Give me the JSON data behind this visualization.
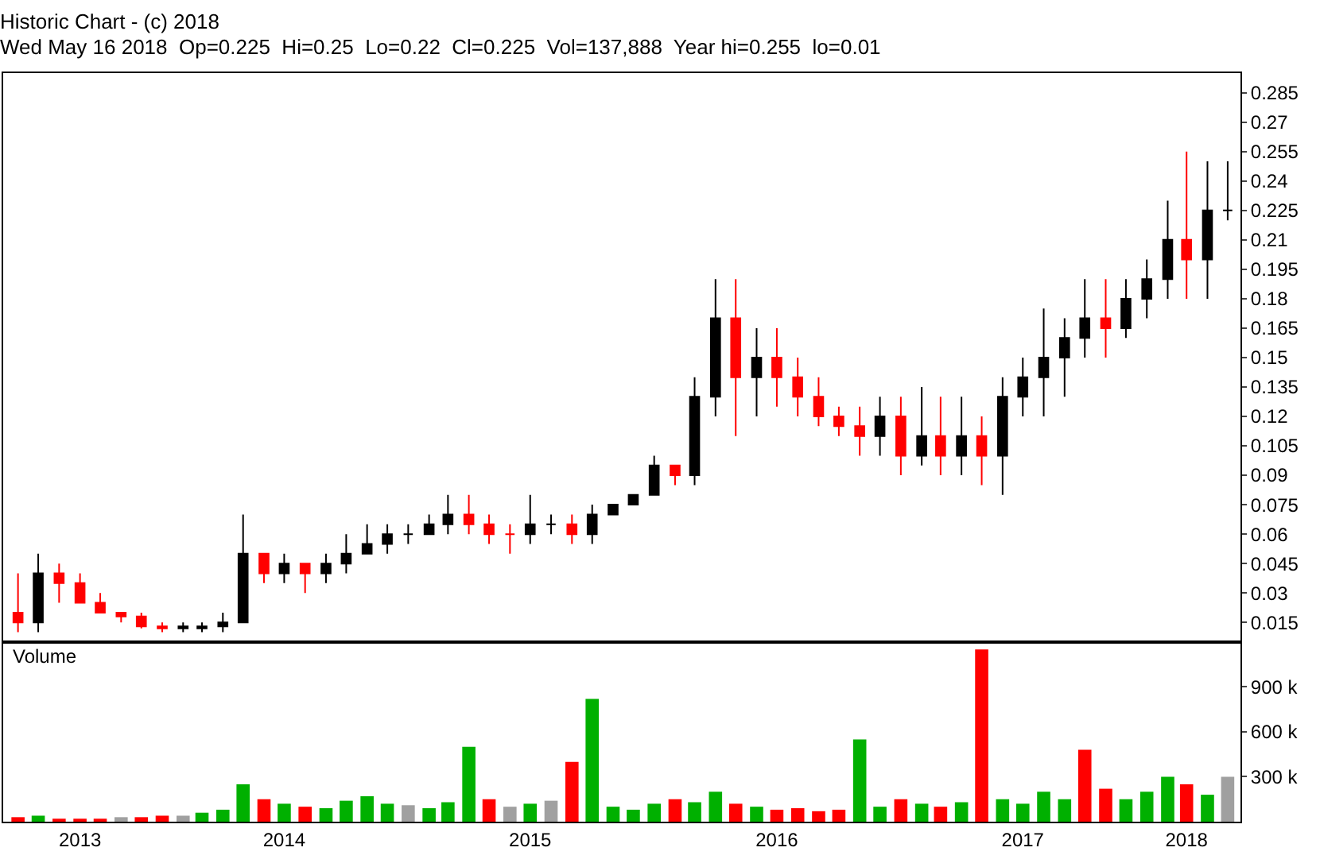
{
  "chart_data": [
    {
      "type": "candlestick",
      "title": "Historic Chart - (c) 2018",
      "subtitle": "Wed May 16 2018  Op=0.225  Hi=0.25  Lo=0.22  Cl=0.225  Vol=137,888  Year hi=0.255  lo=0.01",
      "x": [
        "2013-06-01",
        "2013-07-01",
        "2013-08-01",
        "2013-09-01",
        "2013-10-01",
        "2013-11-01",
        "2013-12-01",
        "2014-01-01",
        "2014-02-01",
        "2014-03-01",
        "2014-04-01",
        "2014-05-01",
        "2014-06-01",
        "2014-07-01",
        "2014-08-01",
        "2014-09-01",
        "2014-10-01",
        "2014-11-01",
        "2014-12-01",
        "2015-01-01",
        "2015-02-01",
        "2015-03-01",
        "2015-04-01",
        "2015-05-01",
        "2015-06-01",
        "2015-07-01",
        "2015-08-01",
        "2015-09-01",
        "2015-10-01",
        "2015-11-01",
        "2015-12-01",
        "2016-01-01",
        "2016-02-01",
        "2016-03-01",
        "2016-04-01",
        "2016-05-01",
        "2016-06-01",
        "2016-07-01",
        "2016-08-01",
        "2016-09-01",
        "2016-10-01",
        "2016-11-01",
        "2016-12-01",
        "2017-01-01",
        "2017-02-01",
        "2017-03-01",
        "2017-04-01",
        "2017-05-01",
        "2017-06-01",
        "2017-07-01",
        "2017-08-01",
        "2017-09-01",
        "2017-10-01",
        "2017-11-01",
        "2017-12-01",
        "2018-01-01",
        "2018-02-01",
        "2018-03-01",
        "2018-04-01",
        "2018-05-01"
      ],
      "ohlc": [
        [
          0.02,
          0.04,
          0.01,
          0.015
        ],
        [
          0.015,
          0.05,
          0.01,
          0.04
        ],
        [
          0.04,
          0.045,
          0.025,
          0.035
        ],
        [
          0.035,
          0.04,
          0.025,
          0.025
        ],
        [
          0.025,
          0.03,
          0.02,
          0.02
        ],
        [
          0.02,
          0.02,
          0.015,
          0.018
        ],
        [
          0.018,
          0.02,
          0.012,
          0.013
        ],
        [
          0.013,
          0.015,
          0.01,
          0.012
        ],
        [
          0.012,
          0.015,
          0.01,
          0.013
        ],
        [
          0.012,
          0.015,
          0.01,
          0.013
        ],
        [
          0.013,
          0.02,
          0.01,
          0.015
        ],
        [
          0.015,
          0.07,
          0.015,
          0.05
        ],
        [
          0.05,
          0.05,
          0.035,
          0.04
        ],
        [
          0.04,
          0.05,
          0.035,
          0.045
        ],
        [
          0.045,
          0.045,
          0.03,
          0.04
        ],
        [
          0.04,
          0.05,
          0.035,
          0.045
        ],
        [
          0.045,
          0.06,
          0.04,
          0.05
        ],
        [
          0.05,
          0.065,
          0.05,
          0.055
        ],
        [
          0.055,
          0.065,
          0.05,
          0.06
        ],
        [
          0.06,
          0.065,
          0.055,
          0.06
        ],
        [
          0.06,
          0.07,
          0.06,
          0.065
        ],
        [
          0.065,
          0.08,
          0.06,
          0.07
        ],
        [
          0.07,
          0.08,
          0.06,
          0.065
        ],
        [
          0.065,
          0.07,
          0.055,
          0.06
        ],
        [
          0.06,
          0.065,
          0.05,
          0.06
        ],
        [
          0.06,
          0.08,
          0.055,
          0.065
        ],
        [
          0.065,
          0.07,
          0.06,
          0.065
        ],
        [
          0.065,
          0.07,
          0.055,
          0.06
        ],
        [
          0.06,
          0.075,
          0.055,
          0.07
        ],
        [
          0.07,
          0.075,
          0.07,
          0.075
        ],
        [
          0.075,
          0.08,
          0.075,
          0.08
        ],
        [
          0.08,
          0.1,
          0.08,
          0.095
        ],
        [
          0.095,
          0.095,
          0.085,
          0.09
        ],
        [
          0.09,
          0.14,
          0.085,
          0.13
        ],
        [
          0.13,
          0.19,
          0.12,
          0.17
        ],
        [
          0.17,
          0.19,
          0.11,
          0.14
        ],
        [
          0.14,
          0.165,
          0.12,
          0.15
        ],
        [
          0.15,
          0.165,
          0.125,
          0.14
        ],
        [
          0.14,
          0.15,
          0.12,
          0.13
        ],
        [
          0.13,
          0.14,
          0.115,
          0.12
        ],
        [
          0.12,
          0.125,
          0.11,
          0.115
        ],
        [
          0.115,
          0.125,
          0.1,
          0.11
        ],
        [
          0.11,
          0.13,
          0.1,
          0.12
        ],
        [
          0.12,
          0.13,
          0.09,
          0.1
        ],
        [
          0.1,
          0.135,
          0.095,
          0.11
        ],
        [
          0.11,
          0.13,
          0.09,
          0.1
        ],
        [
          0.1,
          0.13,
          0.09,
          0.11
        ],
        [
          0.11,
          0.12,
          0.085,
          0.1
        ],
        [
          0.1,
          0.14,
          0.08,
          0.13
        ],
        [
          0.13,
          0.15,
          0.12,
          0.14
        ],
        [
          0.14,
          0.175,
          0.12,
          0.15
        ],
        [
          0.15,
          0.17,
          0.13,
          0.16
        ],
        [
          0.16,
          0.19,
          0.15,
          0.17
        ],
        [
          0.17,
          0.19,
          0.15,
          0.165
        ],
        [
          0.165,
          0.19,
          0.16,
          0.18
        ],
        [
          0.18,
          0.2,
          0.17,
          0.19
        ],
        [
          0.19,
          0.23,
          0.18,
          0.21
        ],
        [
          0.21,
          0.255,
          0.18,
          0.2
        ],
        [
          0.2,
          0.25,
          0.18,
          0.225
        ],
        [
          0.225,
          0.25,
          0.22,
          0.225
        ]
      ],
      "xlim": [
        "2013-05-10",
        "2018-05-20"
      ],
      "ylim": [
        0.005,
        0.295
      ],
      "yticks": [
        0.015,
        0.03,
        0.045,
        0.06,
        0.075,
        0.09,
        0.105,
        0.12,
        0.135,
        0.15,
        0.165,
        0.18,
        0.195,
        0.21,
        0.225,
        0.24,
        0.255,
        0.27,
        0.285
      ],
      "tick_labels": "y",
      "grid": false
    },
    {
      "type": "bar",
      "title": "Volume",
      "x": [
        "2013-06-01",
        "2013-07-01",
        "2013-08-01",
        "2013-09-01",
        "2013-10-01",
        "2013-11-01",
        "2013-12-01",
        "2014-01-01",
        "2014-02-01",
        "2014-03-01",
        "2014-04-01",
        "2014-05-01",
        "2014-06-01",
        "2014-07-01",
        "2014-08-01",
        "2014-09-01",
        "2014-10-01",
        "2014-11-01",
        "2014-12-01",
        "2015-01-01",
        "2015-02-01",
        "2015-03-01",
        "2015-04-01",
        "2015-05-01",
        "2015-06-01",
        "2015-07-01",
        "2015-08-01",
        "2015-09-01",
        "2015-10-01",
        "2015-11-01",
        "2015-12-01",
        "2016-01-01",
        "2016-02-01",
        "2016-03-01",
        "2016-04-01",
        "2016-05-01",
        "2016-06-01",
        "2016-07-01",
        "2016-08-01",
        "2016-09-01",
        "2016-10-01",
        "2016-11-01",
        "2016-12-01",
        "2017-01-01",
        "2017-02-01",
        "2017-03-01",
        "2017-04-01",
        "2017-05-01",
        "2017-06-01",
        "2017-07-01",
        "2017-08-01",
        "2017-09-01",
        "2017-10-01",
        "2017-11-01",
        "2017-12-01",
        "2018-01-01",
        "2018-02-01",
        "2018-03-01",
        "2018-04-01",
        "2018-05-01"
      ],
      "values": [
        30,
        40,
        20,
        20,
        20,
        30,
        30,
        40,
        40,
        60,
        80,
        250,
        150,
        120,
        100,
        90,
        140,
        170,
        120,
        110,
        90,
        130,
        500,
        150,
        100,
        120,
        140,
        400,
        820,
        100,
        80,
        120,
        150,
        130,
        200,
        120,
        100,
        80,
        90,
        70,
        80,
        550,
        100,
        150,
        120,
        100,
        130,
        1150,
        150,
        120,
        200,
        150,
        480,
        220,
        150,
        200,
        300,
        250,
        180,
        300
      ],
      "colors": [
        "#ff0000",
        "#00b000",
        "#ff0000",
        "#ff0000",
        "#ff0000",
        "#a0a0a0",
        "#ff0000",
        "#ff0000",
        "#a0a0a0",
        "#00b000",
        "#00b000",
        "#00b000",
        "#ff0000",
        "#00b000",
        "#ff0000",
        "#00b000",
        "#00b000",
        "#00b000",
        "#00b000",
        "#a0a0a0",
        "#00b000",
        "#00b000",
        "#00b000",
        "#ff0000",
        "#a0a0a0",
        "#00b000",
        "#a0a0a0",
        "#ff0000",
        "#00b000",
        "#00b000",
        "#00b000",
        "#00b000",
        "#ff0000",
        "#00b000",
        "#00b000",
        "#ff0000",
        "#00b000",
        "#ff0000",
        "#ff0000",
        "#ff0000",
        "#ff0000",
        "#00b000",
        "#00b000",
        "#ff0000",
        "#00b000",
        "#ff0000",
        "#00b000",
        "#ff0000",
        "#00b000",
        "#00b000",
        "#00b000",
        "#00b000",
        "#ff0000",
        "#ff0000",
        "#00b000",
        "#00b000",
        "#00b000",
        "#ff0000",
        "#00b000",
        "#a0a0a0"
      ],
      "xlim": [
        "2013-05-10",
        "2018-05-20"
      ],
      "ylim": [
        0,
        1200
      ],
      "yticks": [
        {
          "value": 300,
          "label": "300 k"
        },
        {
          "value": 600,
          "label": "600 k"
        },
        {
          "value": 900,
          "label": "900 k"
        }
      ],
      "xticks": [
        {
          "value": "2013-09-01",
          "label": "2013"
        },
        {
          "value": "2014-07-01",
          "label": "2014"
        },
        {
          "value": "2015-07-01",
          "label": "2015"
        },
        {
          "value": "2016-07-01",
          "label": "2016"
        },
        {
          "value": "2017-07-01",
          "label": "2017"
        },
        {
          "value": "2018-03-01",
          "label": "2018"
        }
      ],
      "grid": false
    }
  ]
}
